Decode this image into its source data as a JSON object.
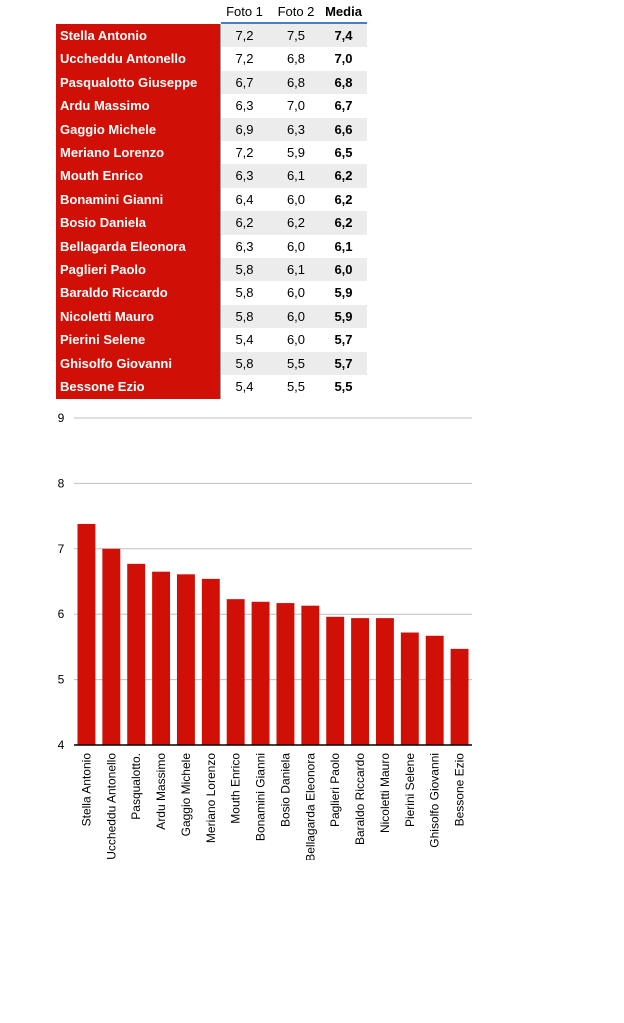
{
  "table": {
    "columns": [
      "Foto 1",
      "Foto 2",
      "Media"
    ],
    "accent_color": "#d01007",
    "stripe_color": "#ececec",
    "rule_color": "#4a7ebb",
    "rows": [
      {
        "name": "Stella Antonio",
        "foto1": "7,2",
        "foto2": "7,5",
        "media": "7,4"
      },
      {
        "name": "Uccheddu Antonello",
        "foto1": "7,2",
        "foto2": "6,8",
        "media": "7,0"
      },
      {
        "name": "Pasqualotto Giuseppe",
        "foto1": "6,7",
        "foto2": "6,8",
        "media": "6,8"
      },
      {
        "name": "Ardu Massimo",
        "foto1": "6,3",
        "foto2": "7,0",
        "media": "6,7"
      },
      {
        "name": "Gaggio Michele",
        "foto1": "6,9",
        "foto2": "6,3",
        "media": "6,6"
      },
      {
        "name": "Meriano Lorenzo",
        "foto1": "7,2",
        "foto2": "5,9",
        "media": "6,5"
      },
      {
        "name": "Mouth Enrico",
        "foto1": "6,3",
        "foto2": "6,1",
        "media": "6,2"
      },
      {
        "name": "Bonamini Gianni",
        "foto1": "6,4",
        "foto2": "6,0",
        "media": "6,2"
      },
      {
        "name": "Bosio Daniela",
        "foto1": "6,2",
        "foto2": "6,2",
        "media": "6,2"
      },
      {
        "name": "Bellagarda Eleonora",
        "foto1": "6,3",
        "foto2": "6,0",
        "media": "6,1"
      },
      {
        "name": "Paglieri Paolo",
        "foto1": "5,8",
        "foto2": "6,1",
        "media": "6,0"
      },
      {
        "name": "Baraldo Riccardo",
        "foto1": "5,8",
        "foto2": "6,0",
        "media": "5,9"
      },
      {
        "name": "Nicoletti Mauro",
        "foto1": "5,8",
        "foto2": "6,0",
        "media": "5,9"
      },
      {
        "name": "Pierini Selene",
        "foto1": "5,4",
        "foto2": "6,0",
        "media": "5,7"
      },
      {
        "name": "Ghisolfo Giovanni",
        "foto1": "5,8",
        "foto2": "5,5",
        "media": "5,7"
      },
      {
        "name": "Bessone Ezio",
        "foto1": "5,4",
        "foto2": "5,5",
        "media": "5,5"
      }
    ]
  },
  "chart_data": {
    "type": "bar",
    "title": "",
    "xlabel": "",
    "ylabel": "",
    "categories": [
      "Stella Antonio",
      "Uccheddu Antonello",
      "Pasqualotto.",
      "Ardu Massimo",
      "Gaggio Michele",
      "Meriano Lorenzo",
      "Mouth Enrico",
      "Bonamini Gianni",
      "Bosio Daniela",
      "Bellagarda Eleonora",
      "Paglieri Paolo",
      "Baraldo Riccardo",
      "Nicoletti Mauro",
      "Pierini Selene",
      "Ghisolfo Giovanni",
      "Bessone Ezio"
    ],
    "values": [
      7.38,
      7.0,
      6.77,
      6.65,
      6.61,
      6.54,
      6.23,
      6.19,
      6.17,
      6.13,
      5.96,
      5.94,
      5.94,
      5.72,
      5.67,
      5.47
    ],
    "ylim": [
      4,
      9
    ],
    "yticks": [
      4,
      5,
      6,
      7,
      8,
      9
    ],
    "grid": true,
    "legend": "none",
    "bar_color": "#d01007",
    "grid_color": "#bfbfbf",
    "axis_color": "#000000"
  }
}
